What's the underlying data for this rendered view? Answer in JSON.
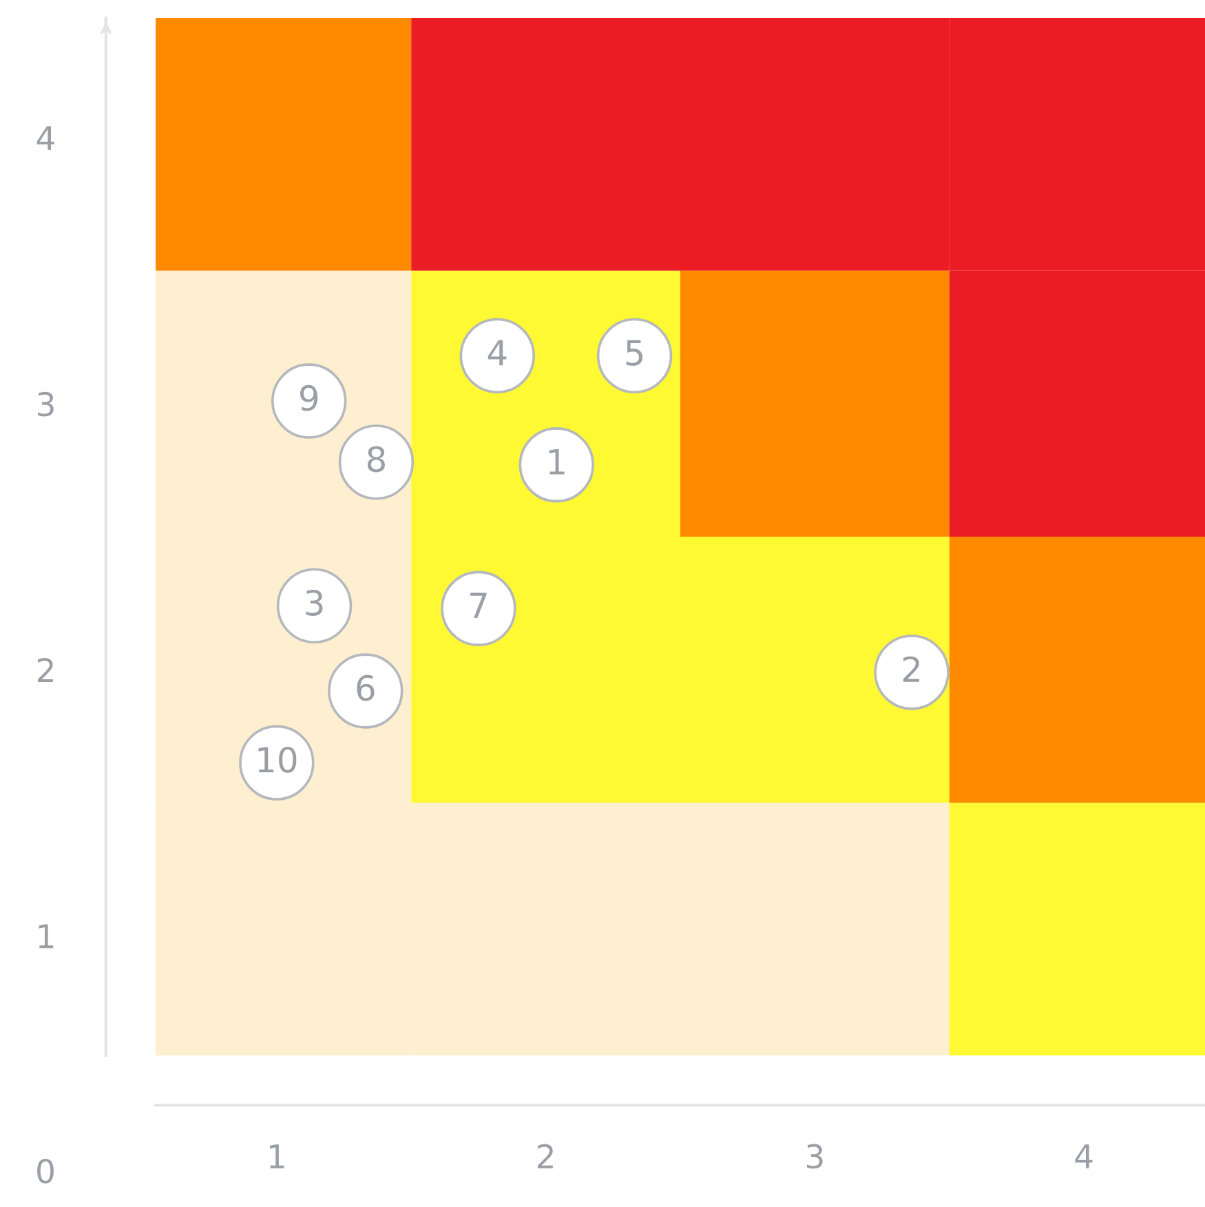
{
  "chart_data": {
    "type": "scatter",
    "xlim": [
      0.55,
      4.45
    ],
    "ylim": [
      0.55,
      4.45
    ],
    "xticks": [
      1,
      2,
      3,
      4
    ],
    "yticks": [
      1,
      2,
      3,
      4
    ],
    "grid": false,
    "legend": false,
    "marker": "circle",
    "series": [
      {
        "color": "#ffffff",
        "x": [
          2.04,
          3.36,
          1.14,
          1.82,
          2.33,
          1.33,
          1.75,
          1.37,
          1.12,
          1.0
        ],
        "values": [
          2.77,
          1.99,
          2.24,
          3.18,
          3.18,
          1.92,
          2.23,
          2.78,
          3.01,
          1.65
        ]
      }
    ],
    "annotations": [
      "0",
      {
        "text": "1",
        "x": 2.04,
        "y": 2.77
      },
      {
        "text": "2",
        "x": 3.36,
        "y": 1.99
      },
      {
        "text": "3",
        "x": 1.14,
        "y": 2.24
      },
      {
        "text": "4",
        "x": 1.82,
        "y": 3.18
      },
      {
        "text": "5",
        "x": 2.33,
        "y": 3.18
      },
      {
        "text": "6",
        "x": 1.33,
        "y": 1.92
      },
      {
        "text": "7",
        "x": 1.75,
        "y": 2.23
      },
      {
        "text": "8",
        "x": 1.37,
        "y": 2.78
      },
      {
        "text": "9",
        "x": 1.12,
        "y": 3.01
      },
      {
        "text": "10",
        "x": 1.0,
        "y": 1.65
      }
    ]
  }
}
